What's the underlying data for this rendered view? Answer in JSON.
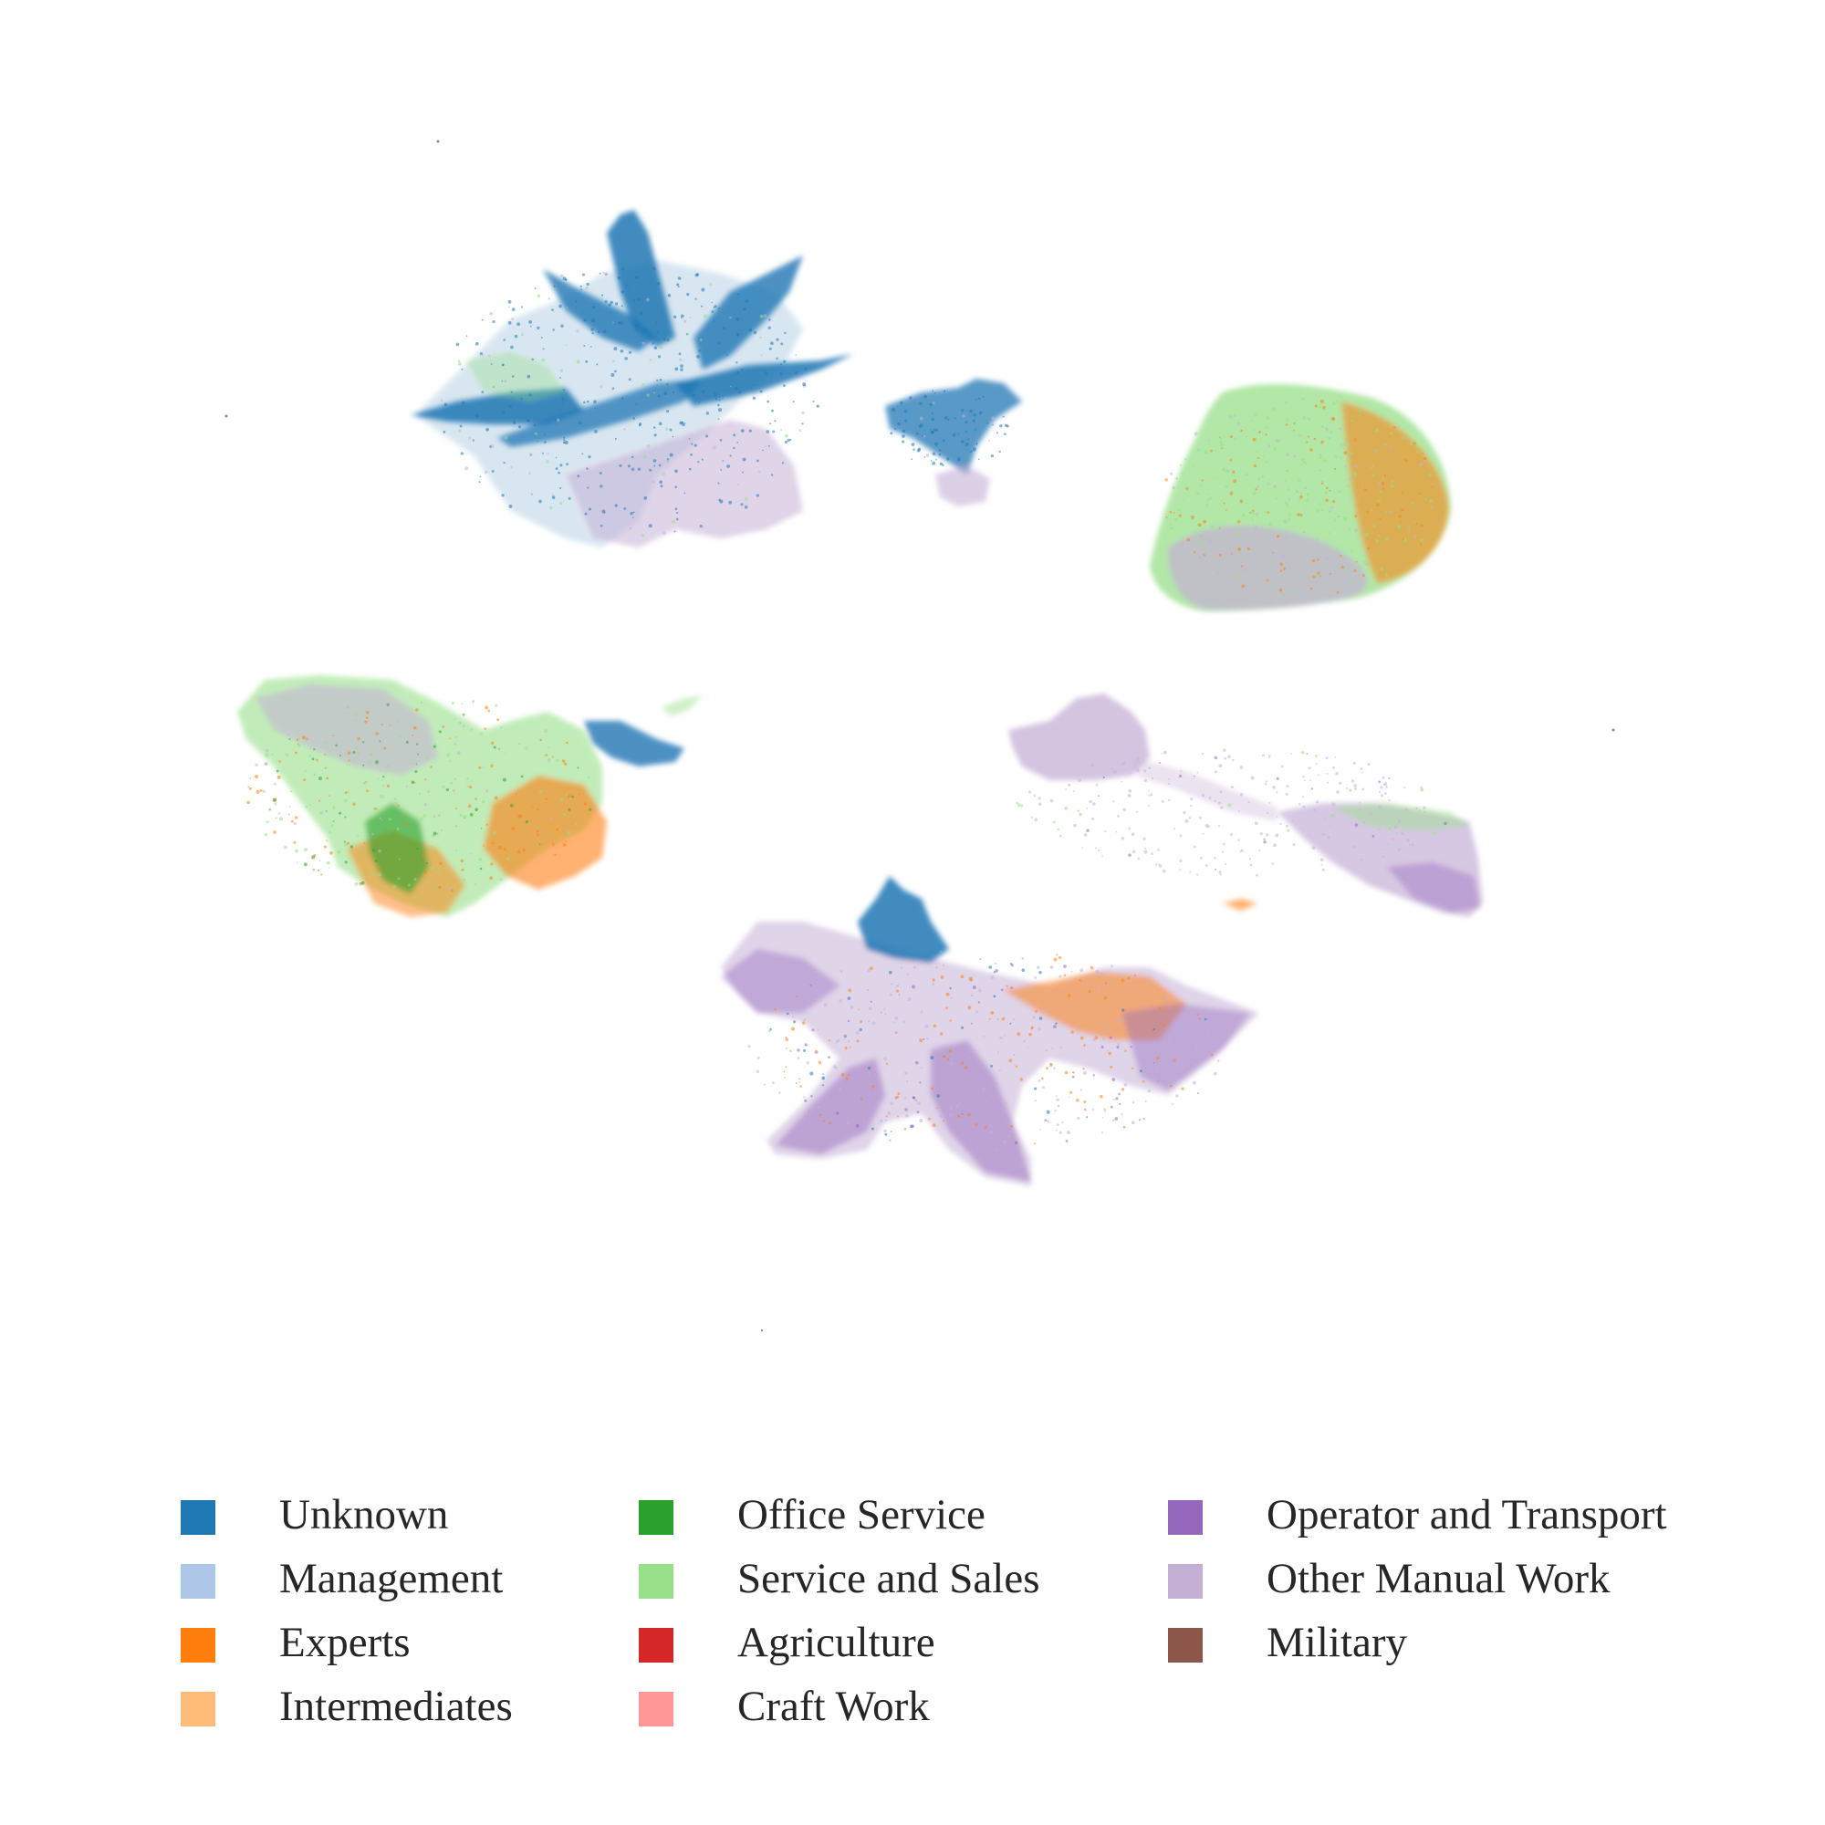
{
  "chart_data": {
    "type": "scatter",
    "title": "",
    "xlabel": "",
    "ylabel": "",
    "axes_visible": false,
    "grid": false,
    "legend_position": "bottom",
    "legend_columns": 3,
    "series": [
      {
        "name": "Unknown",
        "color": "#1f77b4"
      },
      {
        "name": "Management",
        "color": "#aec7e8"
      },
      {
        "name": "Experts",
        "color": "#ff7f0e"
      },
      {
        "name": "Intermediates",
        "color": "#ffbb78"
      },
      {
        "name": "Office Service",
        "color": "#2ca02c"
      },
      {
        "name": "Service and Sales",
        "color": "#98df8a"
      },
      {
        "name": "Agriculture",
        "color": "#d62728"
      },
      {
        "name": "Craft Work",
        "color": "#ff9896"
      },
      {
        "name": "Operator and Transport",
        "color": "#9467bd"
      },
      {
        "name": "Other Manual Work",
        "color": "#c5b0d5"
      },
      {
        "name": "Military",
        "color": "#8c564b"
      }
    ]
  }
}
